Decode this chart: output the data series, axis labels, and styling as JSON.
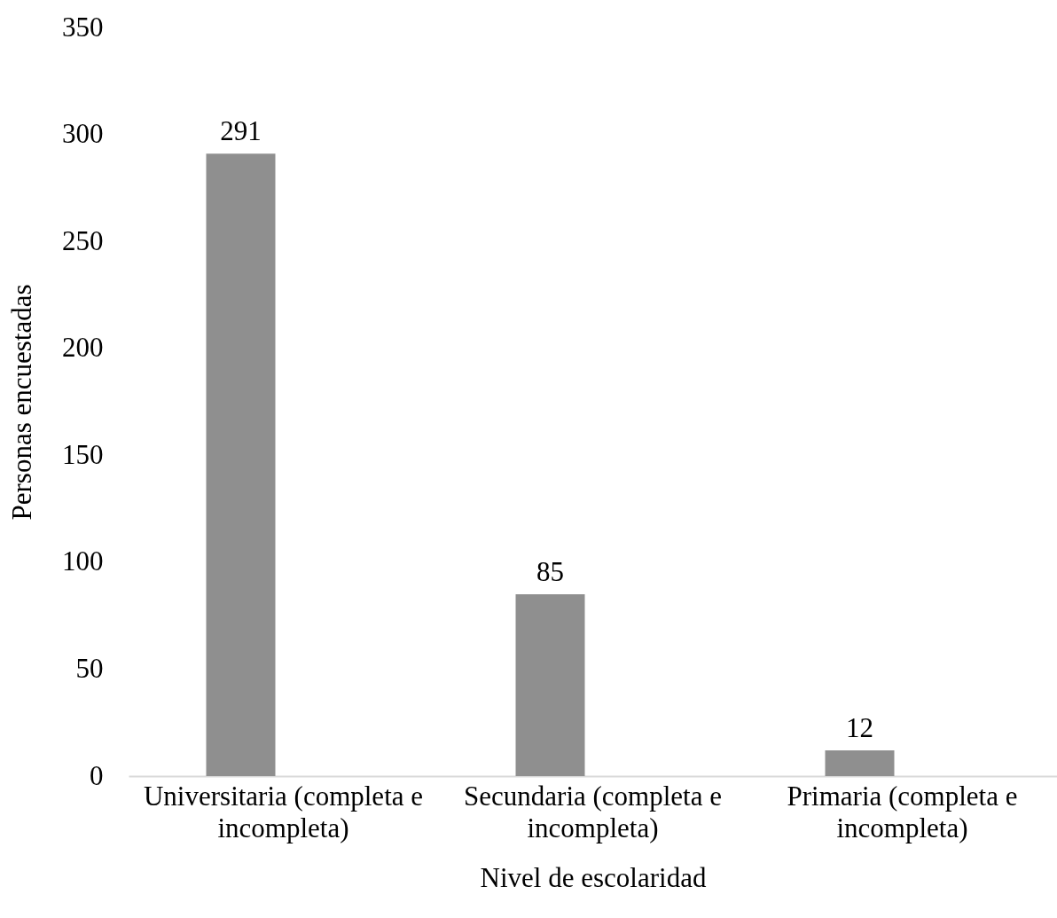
{
  "chart_data": {
    "type": "bar",
    "xlabel": "Nivel de escolaridad",
    "ylabel": "Personas encuestadas",
    "categories": [
      "Universitaria (completa e incompleta)",
      "Secundaria (completa e incompleta)",
      "Primaria (completa e incompleta)"
    ],
    "values": [
      291,
      85,
      12
    ],
    "color": "#8f8f8f",
    "ylim": [
      0,
      350
    ],
    "yticks": [
      0,
      50,
      100,
      150,
      200,
      250,
      300,
      350
    ],
    "data_labels": true,
    "grid": false
  }
}
